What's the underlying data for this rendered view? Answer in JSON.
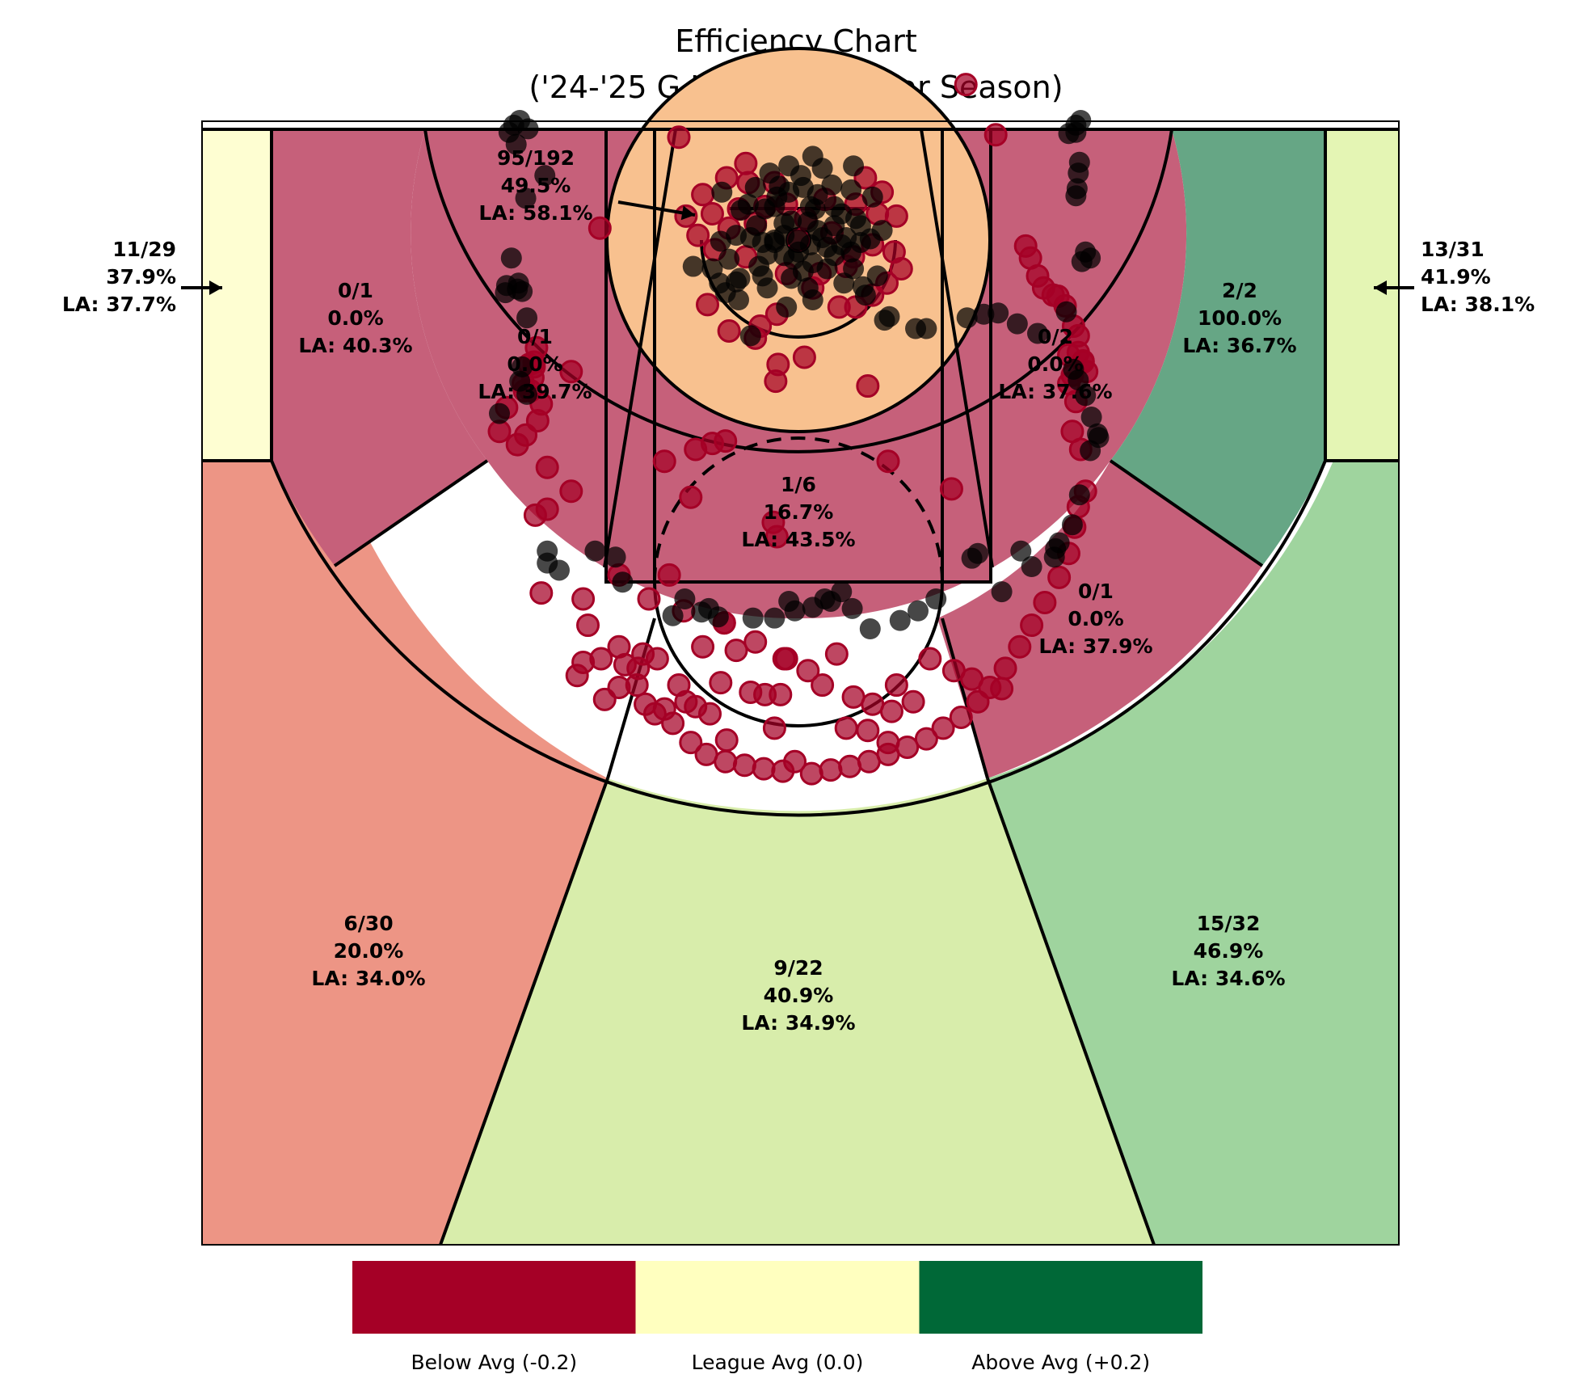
{
  "chart_data": {
    "type": "scatter",
    "title": "Efficiency Chart",
    "subtitle": "('24-'25 G League Regular Season)",
    "colors": {
      "below": "#a50026",
      "league": "#ffffbf",
      "above": "#006837",
      "dot_make": "#006837",
      "dot_miss": "#a50026"
    },
    "legend": [
      {
        "label": "Below Avg (-0.2)",
        "color": "#a50026"
      },
      {
        "label": "League Avg (0.0)",
        "color": "#ffffbf"
      },
      {
        "label": "Above Avg (+0.2)",
        "color": "#006837"
      }
    ],
    "zones": [
      {
        "id": "restricted-area",
        "made_att": "95/192",
        "pct": "49.5%",
        "la": "LA: 58.1%",
        "fill": "#f8c18f"
      },
      {
        "id": "paint",
        "made_att": "1/6",
        "pct": "16.7%",
        "la": "LA: 43.5%",
        "fill": "#c6607a"
      },
      {
        "id": "mid-left-baseline",
        "made_att": "0/1",
        "pct": "0.0%",
        "la": "LA: 40.3%",
        "fill": "#c6607a"
      },
      {
        "id": "mid-left-center",
        "made_att": "0/1",
        "pct": "0.0%",
        "la": "LA: 39.7%",
        "fill": "#c6607a"
      },
      {
        "id": "mid-right-center",
        "made_att": "0/2",
        "pct": "0.0%",
        "la": "LA: 37.6%",
        "fill": "#c6607a"
      },
      {
        "id": "mid-right-baseline",
        "made_att": "2/2",
        "pct": "100.0%",
        "la": "LA: 36.7%",
        "fill": "#66a685"
      },
      {
        "id": "mid-right-wing",
        "made_att": "0/1",
        "pct": "0.0%",
        "la": "LA: 37.9%",
        "fill": "#c6607a"
      },
      {
        "id": "left-corner-3",
        "made_att": "11/29",
        "pct": "37.9%",
        "la": "LA: 37.7%",
        "fill": "#fefed2"
      },
      {
        "id": "right-corner-3",
        "made_att": "13/31",
        "pct": "41.9%",
        "la": "LA: 38.1%",
        "fill": "#e4f5b4"
      },
      {
        "id": "left-wing-3",
        "made_att": "6/30",
        "pct": "20.0%",
        "la": "LA: 34.0%",
        "fill": "#ed9585"
      },
      {
        "id": "top-3",
        "made_att": "9/22",
        "pct": "40.9%",
        "la": "LA: 34.9%",
        "fill": "#d8edab"
      },
      {
        "id": "right-wing-3",
        "made_att": "15/32",
        "pct": "46.9%",
        "la": "LA: 34.6%",
        "fill": "#9fd49e"
      }
    ],
    "shots_made": [
      [
        -242,
        90
      ],
      [
        -238,
        96
      ],
      [
        -233,
        100
      ],
      [
        -226,
        93
      ],
      [
        -236,
        80
      ],
      [
        -212,
        54
      ],
      [
        -228,
        35
      ],
      [
        -234,
        -36
      ],
      [
        -235,
        -41
      ],
      [
        -231,
        -43
      ],
      [
        -240,
        -15
      ],
      [
        -244,
        -38
      ],
      [
        -245,
        -44
      ],
      [
        -227,
        -65
      ],
      [
        -231,
        -106
      ],
      [
        -233,
        -118
      ],
      [
        -227,
        -129
      ],
      [
        -250,
        -145
      ],
      [
        -210,
        -260
      ],
      [
        -210,
        -270
      ],
      [
        -200,
        -276
      ],
      [
        -170,
        -260
      ],
      [
        -153,
        -265
      ],
      [
        -147,
        -286
      ],
      [
        -105,
        -314
      ],
      [
        -95,
        -300
      ],
      [
        -81,
        -311
      ],
      [
        -67,
        -315
      ],
      [
        -75,
        -308
      ],
      [
        -38,
        -316
      ],
      [
        -20,
        -316
      ],
      [
        -8,
        -302
      ],
      [
        -3,
        -310
      ],
      [
        12,
        -307
      ],
      [
        22,
        -300
      ],
      [
        27,
        -302
      ],
      [
        36,
        -294
      ],
      [
        45,
        -308
      ],
      [
        60,
        -325
      ],
      [
        85,
        -318
      ],
      [
        100,
        -310
      ],
      [
        115,
        -300
      ],
      [
        145,
        -266
      ],
      [
        186,
        -260
      ],
      [
        150,
        -262
      ],
      [
        170,
        -294
      ],
      [
        195,
        -273
      ],
      [
        214,
        -265
      ],
      [
        215,
        -258
      ],
      [
        218,
        -253
      ],
      [
        229,
        -238
      ],
      [
        235,
        -213
      ],
      [
        244,
        -176
      ],
      [
        250,
        -162
      ],
      [
        251,
        -165
      ],
      [
        245,
        -148
      ],
      [
        240,
        -130
      ],
      [
        234,
        -117
      ],
      [
        230,
        -108
      ],
      [
        224,
        -60
      ],
      [
        237,
        -18
      ],
      [
        244,
        -15
      ],
      [
        240,
        -10
      ],
      [
        232,
        37
      ],
      [
        233,
        43
      ],
      [
        234,
        56
      ],
      [
        235,
        65
      ],
      [
        232,
        90
      ],
      [
        232,
        96
      ],
      [
        236,
        100
      ],
      [
        226,
        89
      ],
      [
        200,
        -78
      ],
      [
        183,
        -70
      ],
      [
        167,
        -61
      ],
      [
        155,
        -62
      ],
      [
        141,
        -65
      ],
      [
        107,
        -74
      ],
      [
        98,
        -74
      ],
      [
        72,
        -67
      ],
      [
        54,
        -39
      ],
      [
        46,
        -24
      ],
      [
        30,
        -13
      ],
      [
        12,
        -19
      ],
      [
        -12,
        -13
      ],
      [
        -33,
        -22
      ],
      [
        -52,
        -35
      ],
      [
        -61,
        -44
      ],
      [
        -88,
        -22
      ],
      [
        -65,
        -1
      ],
      [
        -40,
        2
      ],
      [
        -20,
        0
      ],
      [
        0,
        0
      ],
      [
        20,
        2
      ],
      [
        40,
        2
      ],
      [
        60,
        1
      ],
      [
        -35,
        12
      ],
      [
        -12,
        14
      ],
      [
        8,
        15
      ],
      [
        30,
        12
      ],
      [
        52,
        12
      ],
      [
        70,
        8
      ],
      [
        -48,
        25
      ],
      [
        -20,
        28
      ],
      [
        10,
        28
      ],
      [
        30,
        28
      ],
      [
        -8,
        40
      ],
      [
        16,
        38
      ],
      [
        44,
        42
      ],
      [
        -26,
        -40
      ],
      [
        -10,
        -56
      ],
      [
        12,
        -50
      ],
      [
        -40,
        -80
      ],
      [
        76,
        -64
      ],
      [
        -49,
        -32
      ],
      [
        -30,
        -30
      ],
      [
        -6,
        -32
      ],
      [
        4,
        -26
      ],
      [
        24,
        -24
      ],
      [
        38,
        -36
      ],
      [
        66,
        -30
      ],
      [
        -72,
        -24
      ],
      [
        -58,
        -16
      ],
      [
        -26,
        -12
      ],
      [
        0,
        -10
      ],
      [
        44,
        -10
      ],
      [
        -20,
        -2
      ],
      [
        10,
        -4
      ],
      [
        -28,
        26
      ],
      [
        2,
        54
      ],
      [
        20,
        60
      ],
      [
        -16,
        45
      ],
      [
        36,
        22
      ],
      [
        62,
        36
      ],
      [
        -64,
        40
      ],
      [
        -42,
        30
      ],
      [
        -12,
        4
      ],
      [
        24,
        -6
      ],
      [
        48,
        18
      ],
      [
        -6,
        16
      ],
      [
        14,
        26
      ],
      [
        -36,
        44
      ],
      [
        28,
        46
      ],
      [
        -8,
        62
      ],
      [
        12,
        70
      ],
      [
        52,
        -2
      ],
      [
        -52,
        4
      ],
      [
        -4,
        -16
      ],
      [
        16,
        8
      ],
      [
        -18,
        36
      ],
      [
        36,
        -4
      ],
      [
        56,
        -46
      ],
      [
        -50,
        -50
      ],
      [
        -66,
        -36
      ],
      [
        4,
        44
      ],
      [
        -24,
        56
      ],
      [
        46,
        62
      ],
      [
        -30,
        -2
      ],
      [
        8,
        -40
      ]
    ],
    "shots_missed": [
      [
        -219,
        -90
      ],
      [
        -221,
        -102
      ],
      [
        -222,
        -115
      ],
      [
        -224,
        -126
      ],
      [
        -221,
        -106
      ],
      [
        -225,
        -104
      ],
      [
        -229,
        -126
      ],
      [
        -215,
        -137
      ],
      [
        -218,
        -151
      ],
      [
        -230,
        -120
      ],
      [
        -244,
        -140
      ],
      [
        -228,
        -163
      ],
      [
        -235,
        -171
      ],
      [
        -250,
        -160
      ],
      [
        -210,
        -190
      ],
      [
        -190,
        -210
      ],
      [
        -210,
        -225
      ],
      [
        -220,
        -230
      ],
      [
        -215,
        -295
      ],
      [
        -180,
        -300
      ],
      [
        -176,
        -322
      ],
      [
        -165,
        -350
      ],
      [
        -150,
        -340
      ],
      [
        -145,
        -355
      ],
      [
        -135,
        -372
      ],
      [
        -128,
        -388
      ],
      [
        -120,
        -396
      ],
      [
        -105,
        -404
      ],
      [
        -90,
        -420
      ],
      [
        -77,
        -430
      ],
      [
        -61,
        -436
      ],
      [
        -45,
        -439
      ],
      [
        -29,
        -442
      ],
      [
        -13,
        -444
      ],
      [
        11,
        -446
      ],
      [
        27,
        -443
      ],
      [
        43,
        -440
      ],
      [
        59,
        -436
      ],
      [
        75,
        -430
      ],
      [
        91,
        -424
      ],
      [
        107,
        -417
      ],
      [
        121,
        -408
      ],
      [
        136,
        -399
      ],
      [
        150,
        -386
      ],
      [
        160,
        -374
      ],
      [
        173,
        -358
      ],
      [
        185,
        -340
      ],
      [
        195,
        -322
      ],
      [
        206,
        -303
      ],
      [
        218,
        -282
      ],
      [
        226,
        -262
      ],
      [
        231,
        -240
      ],
      [
        234,
        -223
      ],
      [
        240,
        -210
      ],
      [
        236,
        -175
      ],
      [
        229,
        -160
      ],
      [
        232,
        -135
      ],
      [
        226,
        -120
      ],
      [
        229,
        -113
      ],
      [
        241,
        -110
      ],
      [
        238,
        -102
      ],
      [
        238,
        -101
      ],
      [
        226,
        -96
      ],
      [
        234,
        -94
      ],
      [
        234,
        -80
      ],
      [
        230,
        -72
      ],
      [
        223,
        -55
      ],
      [
        217,
        -47
      ],
      [
        213,
        -46
      ],
      [
        205,
        -40
      ],
      [
        200,
        -30
      ],
      [
        194,
        -15
      ],
      [
        190,
        -5
      ],
      [
        -190,
        -110
      ],
      [
        -150,
        -280
      ],
      [
        -125,
        -300
      ],
      [
        -108,
        -280
      ],
      [
        -96,
        -310
      ],
      [
        -80,
        -340
      ],
      [
        -65,
        -370
      ],
      [
        -40,
        -378
      ],
      [
        -28,
        -380
      ],
      [
        -15,
        -380
      ],
      [
        -52,
        -343
      ],
      [
        -62,
        -320
      ],
      [
        -36,
        -336
      ],
      [
        -10,
        -350
      ],
      [
        -12,
        -350
      ],
      [
        8,
        -360
      ],
      [
        20,
        -372
      ],
      [
        32,
        -346
      ],
      [
        46,
        -382
      ],
      [
        62,
        -388
      ],
      [
        78,
        -394
      ],
      [
        82,
        -372
      ],
      [
        96,
        -386
      ],
      [
        -62,
        -320
      ],
      [
        110,
        -350
      ],
      [
        130,
        -360
      ],
      [
        145,
        -367
      ],
      [
        -94,
        -386
      ],
      [
        -112,
        -392
      ],
      [
        -100,
        -372
      ],
      [
        -130,
        -346
      ],
      [
        -134,
        -358
      ],
      [
        -118,
        -350
      ],
      [
        -86,
        -390
      ],
      [
        -150,
        -374
      ],
      [
        -162,
        -384
      ],
      [
        -74,
        -396
      ],
      [
        -3,
        -436
      ],
      [
        -60,
        -418
      ],
      [
        40,
        -408
      ],
      [
        -20,
        -408
      ],
      [
        58,
        -410
      ],
      [
        75,
        -420
      ],
      [
        -180,
        -353
      ],
      [
        170,
        -375
      ],
      [
        -185,
        -364
      ],
      [
        5,
        -98
      ],
      [
        -19,
        -118
      ],
      [
        58,
        -122
      ],
      [
        75,
        -185
      ],
      [
        128,
        -208
      ],
      [
        -21,
        -236
      ],
      [
        -18,
        -248
      ],
      [
        -90,
        -215
      ],
      [
        -112,
        -185
      ],
      [
        -86,
        -175
      ],
      [
        -72,
        -170
      ],
      [
        -61,
        -168
      ],
      [
        -17,
        -104
      ],
      [
        -76,
        -54
      ],
      [
        -58,
        -76
      ],
      [
        -36,
        -82
      ],
      [
        -32,
        -72
      ],
      [
        -18,
        -62
      ],
      [
        12,
        -40
      ],
      [
        34,
        -56
      ],
      [
        48,
        -56
      ],
      [
        62,
        -46
      ],
      [
        74,
        -36
      ],
      [
        86,
        -24
      ],
      [
        -70,
        -8
      ],
      [
        -84,
        4
      ],
      [
        -94,
        20
      ],
      [
        -80,
        38
      ],
      [
        -60,
        52
      ],
      [
        -42,
        48
      ],
      [
        -20,
        48
      ],
      [
        56,
        52
      ],
      [
        70,
        40
      ],
      [
        82,
        20
      ],
      [
        80,
        -10
      ],
      [
        40,
        -22
      ],
      [
        18,
        -28
      ],
      [
        -10,
        -28
      ],
      [
        -44,
        -14
      ],
      [
        -58,
        10
      ],
      [
        -28,
        28
      ],
      [
        6,
        18
      ],
      [
        28,
        6
      ],
      [
        46,
        -14
      ],
      [
        62,
        -4
      ],
      [
        -72,
        22
      ],
      [
        -50,
        26
      ],
      [
        -36,
        14
      ],
      [
        -10,
        30
      ],
      [
        22,
        34
      ],
      [
        48,
        30
      ],
      [
        66,
        22
      ],
      [
        -44,
        64
      ],
      [
        -100,
        86
      ],
      [
        140,
        130
      ],
      [
        165,
        88
      ],
      [
        -166,
        10
      ],
      [
        0,
        0
      ]
    ]
  }
}
